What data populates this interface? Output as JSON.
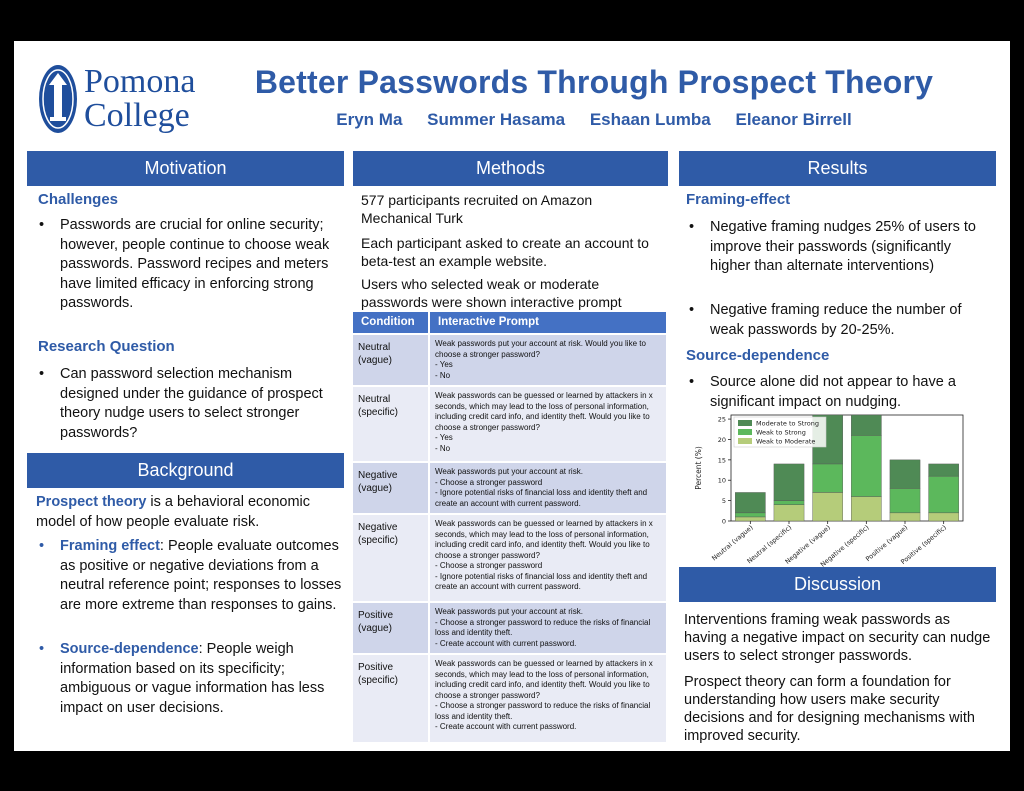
{
  "header": {
    "logo_line1": "Pomona",
    "logo_line2": "College",
    "title": "Better Passwords Through Prospect Theory",
    "authors": [
      "Eryn Ma",
      "Summer Hasama",
      "Eshaan Lumba",
      "Eleanor Birrell"
    ]
  },
  "motivation": {
    "heading": "Motivation",
    "challenges_title": "Challenges",
    "challenges_text": "Passwords are crucial for online security; however, people continue to choose weak passwords. Password recipes and meters have limited efficacy in enforcing strong passwords.",
    "rq_title": "Research Question",
    "rq_text": "Can password selection mechanism designed under the guidance of prospect theory nudge users to select stronger passwords?"
  },
  "background": {
    "heading": "Background",
    "intro_term": "Prospect theory",
    "intro_text": " is a behavioral economic model of how people evaluate risk.",
    "framing_term": "Framing effect",
    "framing_text": ":  People evaluate outcomes as positive or negative deviations from a neutral reference point; responses to losses are more extreme than responses to gains.",
    "source_term": "Source-dependence",
    "source_text": ": People weigh information based on its specificity; ambiguous or vague information has less impact on user decisions."
  },
  "methods": {
    "heading": "Methods",
    "p1": "577 participants recruited on Amazon Mechanical Turk",
    "p2": "Each participant asked to create an account to beta-test an example website.",
    "p3": "Users who selected weak or moderate passwords were shown interactive prompt",
    "table_headers": [
      "Condition",
      "Interactive Prompt"
    ],
    "rows": [
      {
        "condition": "Neutral (vague)",
        "prompt": "Weak passwords put your account at risk. Would you like to choose a stronger password?\n- Yes\n- No"
      },
      {
        "condition": "Neutral (specific)",
        "prompt": "Weak passwords can be guessed or learned by attackers in x seconds, which may lead to the loss of personal information, including credit card info, and identity theft. Would you like to choose a stronger password?\n- Yes\n- No"
      },
      {
        "condition": "Negative (vague)",
        "prompt": "Weak passwords put your account at risk.\n- Choose a stronger password\n- Ignore potential risks of financial loss and identity theft and create an account with current password."
      },
      {
        "condition": "Negative (specific)",
        "prompt": "Weak passwords can be guessed or learned by attackers in x seconds, which may lead to the loss of personal information, including credit card info, and identity theft. Would you like to choose a stronger password?\n- Choose a stronger password\n- Ignore potential risks of financial loss and identity theft and create an account with current password."
      },
      {
        "condition": "Positive (vague)",
        "prompt": "Weak passwords put your account at risk.\n- Choose a stronger password to reduce the risks of financial loss and identity theft.\n- Create account with current password."
      },
      {
        "condition": "Positive (specific)",
        "prompt": "Weak passwords can be guessed or learned by attackers in x seconds, which may lead to the loss of personal information, including credit card info, and identity theft. Would you like to choose a stronger password?\n- Choose a stronger password to reduce the risks of financial loss and identity theft.\n- Create account with current password."
      }
    ]
  },
  "results": {
    "heading": "Results",
    "framing_title": "Framing-effect",
    "framing_b1": "Negative framing nudges 25% of users to improve their passwords (significantly higher than alternate interventions)",
    "framing_b2": "Negative framing reduce the number of weak passwords by 20-25%.",
    "source_title": "Source-dependence",
    "source_b1": "Source alone did not appear to have a significant impact on nudging."
  },
  "discussion": {
    "heading": "Discussion",
    "p1": "Interventions framing weak passwords as having a negative impact on security can nudge users to select stronger passwords.",
    "p2": "Prospect theory can form a foundation for understanding how users make security decisions and for designing mechanisms with improved security."
  },
  "chart_data": {
    "type": "bar",
    "stacked": true,
    "categories": [
      "Neutral (vague)",
      "Neutral (specific)",
      "Negative (vague)",
      "Negative (specific)",
      "Positive (vague)",
      "Positive (specific)"
    ],
    "series": [
      {
        "name": "Weak to Moderate",
        "color": "#b5cc7a",
        "values": [
          1,
          4,
          7,
          6,
          2,
          2
        ]
      },
      {
        "name": "Weak to Strong",
        "color": "#5cb85c",
        "values": [
          1,
          1,
          7,
          15,
          6,
          9
        ]
      },
      {
        "name": "Moderate to Strong",
        "color": "#4f8a55",
        "values": [
          5,
          9,
          12,
          5,
          7,
          3
        ]
      }
    ],
    "ylabel": "Percent (%)",
    "yticks": [
      0,
      5,
      10,
      15,
      20,
      25
    ],
    "ylim": [
      0,
      26
    ],
    "legend": "top-left",
    "grid": false
  }
}
